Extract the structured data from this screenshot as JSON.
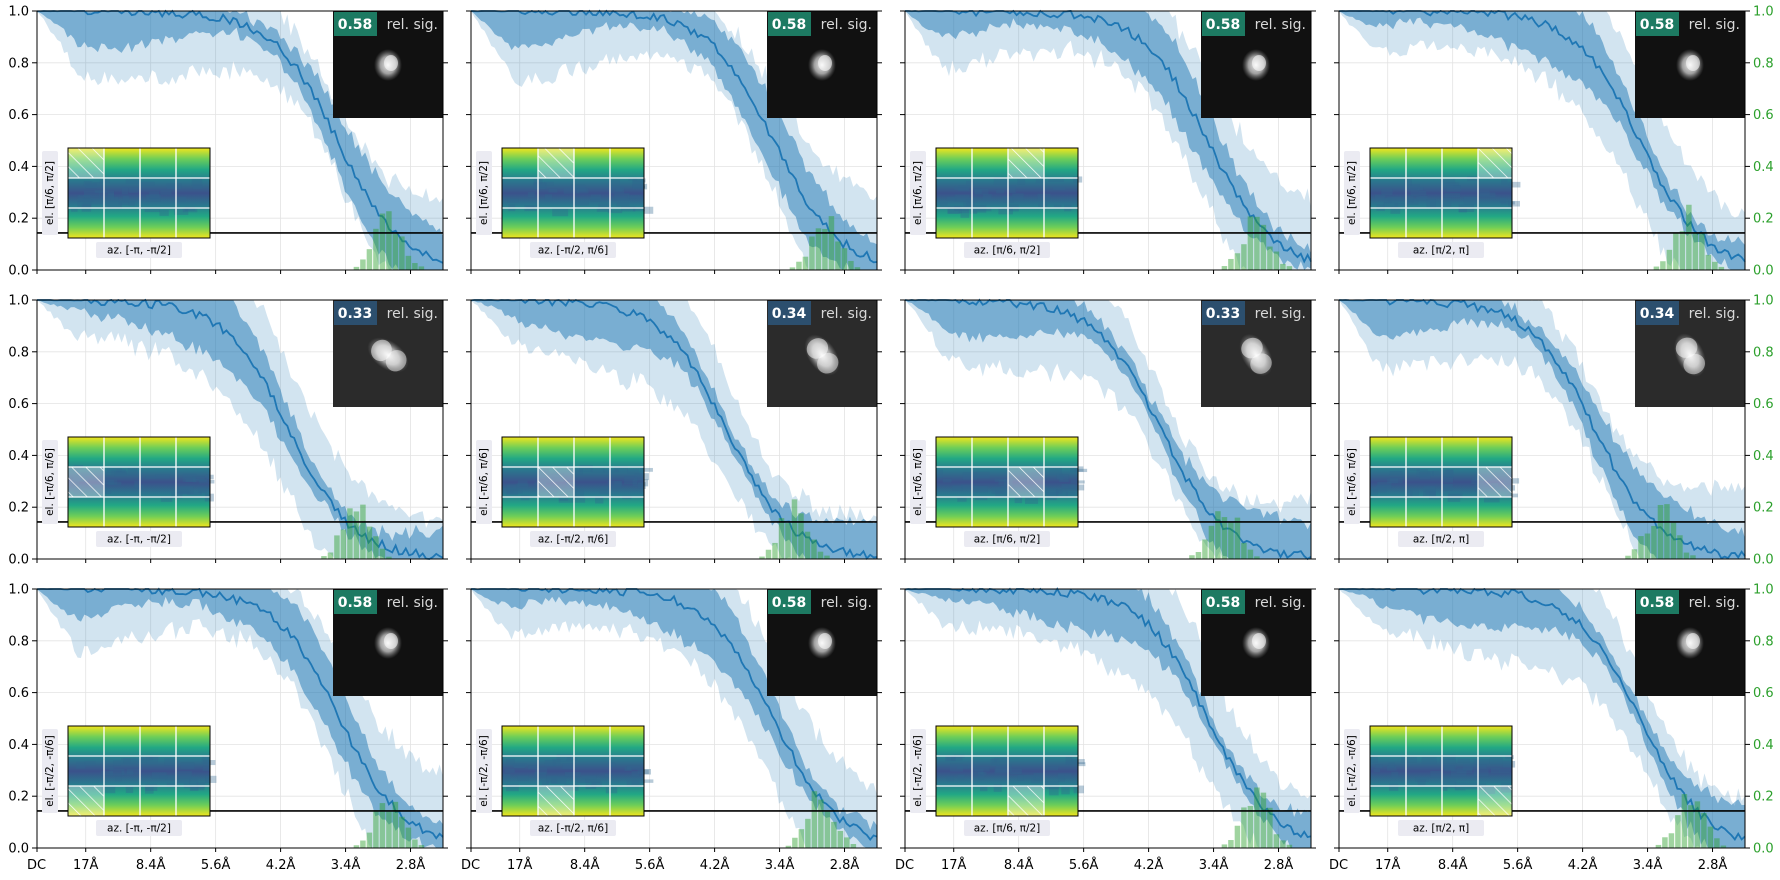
{
  "chart_data": {
    "type": "line",
    "title": "",
    "grid": true,
    "layout": {
      "rows": 3,
      "cols": 4
    },
    "x": {
      "tick_labels": [
        "DC",
        "17Å",
        "8.4Å",
        "5.6Å",
        "4.2Å",
        "3.4Å",
        "2.8Å"
      ],
      "range": [
        0,
        1
      ]
    },
    "y_left": {
      "ylim": [
        0,
        1
      ],
      "ticks": [
        "0.0",
        "0.2",
        "0.4",
        "0.6",
        "0.8",
        "1.0"
      ]
    },
    "y_right": {
      "ylim": [
        0,
        1
      ],
      "ticks": [
        "0.0",
        "0.2",
        "0.4",
        "0.6",
        "0.8",
        "1.0"
      ],
      "color": "#2ca02c"
    },
    "threshold": 0.143,
    "series": [
      {
        "name": "mean FSC",
        "type": "line",
        "color": "#1f77b4"
      },
      {
        "name": "inner band",
        "type": "area",
        "color": "#1f77b4"
      },
      {
        "name": "outer band",
        "type": "area",
        "color": "#1f77b4"
      },
      {
        "name": "resolution histogram",
        "type": "bar",
        "color": "#2ca02c"
      },
      {
        "name": "threshold",
        "type": "line",
        "color": "#000000"
      }
    ],
    "badge_label": "rel. sig.",
    "row_elevation": [
      "el. [π/6, π/2]",
      "el. [-π/6, π/6]",
      "el. [-π/2, -π/6]"
    ],
    "col_azimuth": [
      "az. [-π, -π/2]",
      "az. [-π/2, π/6]",
      "az. [π/6, π/2]",
      "az. [π/2, π]"
    ],
    "panels": [
      {
        "row": 0,
        "col": 0,
        "rel_sig": "0.58",
        "elevation": "el. [π/6, π/2]",
        "azimuth": "az. [-π, -π/2]",
        "fsc_midpoint": 0.74,
        "hist_center": 0.86
      },
      {
        "row": 0,
        "col": 1,
        "rel_sig": "0.58",
        "elevation": "el. [π/6, π/2]",
        "azimuth": "az. [-π/2, π/6]",
        "fsc_midpoint": 0.745,
        "hist_center": 0.865
      },
      {
        "row": 0,
        "col": 2,
        "rel_sig": "0.58",
        "elevation": "el. [π/6, π/2]",
        "azimuth": "az. [π/6, π/2]",
        "fsc_midpoint": 0.745,
        "hist_center": 0.86
      },
      {
        "row": 0,
        "col": 3,
        "rel_sig": "0.58",
        "elevation": "el. [π/6, π/2]",
        "azimuth": "az. [π/2, π]",
        "fsc_midpoint": 0.74,
        "hist_center": 0.855
      },
      {
        "row": 1,
        "col": 0,
        "rel_sig": "0.33",
        "elevation": "el. [-π/6, π/6]",
        "azimuth": "az. [-π, -π/2]",
        "fsc_midpoint": 0.62,
        "hist_center": 0.78
      },
      {
        "row": 1,
        "col": 1,
        "rel_sig": "0.34",
        "elevation": "el. [-π/6, π/6]",
        "azimuth": "az. [-π/2, π/6]",
        "fsc_midpoint": 0.63,
        "hist_center": 0.79
      },
      {
        "row": 1,
        "col": 2,
        "rel_sig": "0.33",
        "elevation": "el. [-π/6, π/6]",
        "azimuth": "az. [π/6, π/2]",
        "fsc_midpoint": 0.63,
        "hist_center": 0.78
      },
      {
        "row": 1,
        "col": 3,
        "rel_sig": "0.34",
        "elevation": "el. [-π/6, π/6]",
        "azimuth": "az. [π/2, π]",
        "fsc_midpoint": 0.63,
        "hist_center": 0.785
      },
      {
        "row": 2,
        "col": 0,
        "rel_sig": "0.58",
        "elevation": "el. [-π/2, -π/6]",
        "azimuth": "az. [-π, -π/2]",
        "fsc_midpoint": 0.745,
        "hist_center": 0.86
      },
      {
        "row": 2,
        "col": 1,
        "rel_sig": "0.58",
        "elevation": "el. [-π/2, -π/6]",
        "azimuth": "az. [-π/2, π/6]",
        "fsc_midpoint": 0.745,
        "hist_center": 0.855
      },
      {
        "row": 2,
        "col": 2,
        "rel_sig": "0.58",
        "elevation": "el. [-π/2, -π/6]",
        "azimuth": "az. [π/6, π/2]",
        "fsc_midpoint": 0.745,
        "hist_center": 0.86
      },
      {
        "row": 2,
        "col": 3,
        "rel_sig": "0.58",
        "elevation": "el. [-π/2, -π/6]",
        "azimuth": "az. [π/2, π]",
        "fsc_midpoint": 0.74,
        "hist_center": 0.86
      }
    ]
  }
}
